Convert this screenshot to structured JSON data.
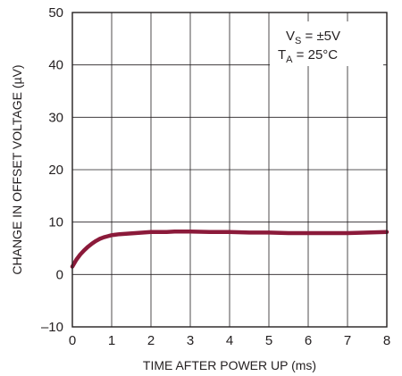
{
  "chart_data": {
    "type": "line",
    "xlabel": "TIME AFTER POWER UP (ms)",
    "ylabel": "CHANGE IN OFFSET VOLTAGE (µV)",
    "xlim": [
      0,
      8
    ],
    "ylim": [
      -10,
      50
    ],
    "x_ticks": [
      "0",
      "1",
      "2",
      "3",
      "4",
      "5",
      "6",
      "7",
      "8"
    ],
    "y_ticks": [
      "–10",
      "0",
      "10",
      "20",
      "30",
      "40",
      "50"
    ],
    "grid": true,
    "series_color": "#8b1a3a",
    "annotation": {
      "line1_main": "V",
      "line1_sub": "S",
      "line1_rest": " = ±5V",
      "line2_main": "T",
      "line2_sub": "A",
      "line2_rest": " = 25°C"
    },
    "series": [
      {
        "x": [
          0,
          0.1,
          0.2,
          0.3,
          0.4,
          0.5,
          0.6,
          0.7,
          0.8,
          0.9,
          1.0,
          1.2,
          1.4,
          1.6,
          1.8,
          2.0,
          2.2,
          2.4,
          2.6,
          2.8,
          3.0,
          3.5,
          4.0,
          4.5,
          5.0,
          5.5,
          6.0,
          6.5,
          7.0,
          7.5,
          8.0
        ],
        "y": [
          1.5,
          2.8,
          3.8,
          4.6,
          5.3,
          5.9,
          6.4,
          6.8,
          7.1,
          7.3,
          7.5,
          7.7,
          7.8,
          7.9,
          8.0,
          8.1,
          8.1,
          8.1,
          8.2,
          8.2,
          8.2,
          8.1,
          8.1,
          8.0,
          8.0,
          7.9,
          7.9,
          7.9,
          7.9,
          8.0,
          8.1
        ]
      }
    ]
  }
}
